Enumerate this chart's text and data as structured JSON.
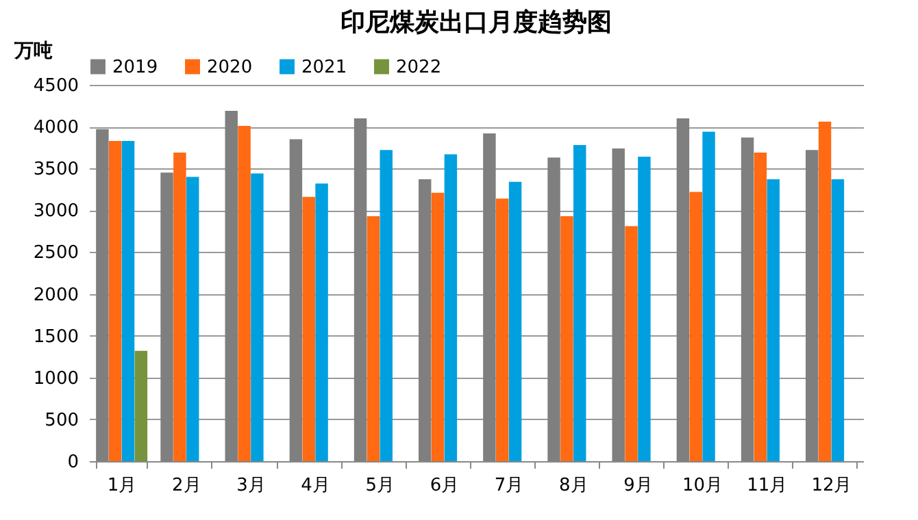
{
  "chart_data": {
    "type": "bar",
    "title": "印尼煤炭出口月度趋势图",
    "ylabel": "万吨",
    "categories": [
      "1月",
      "2月",
      "3月",
      "4月",
      "5月",
      "6月",
      "7月",
      "8月",
      "9月",
      "10月",
      "11月",
      "12月"
    ],
    "series": [
      {
        "name": "2019",
        "color": "#7f7f7f",
        "values": [
          3970,
          3450,
          4190,
          3850,
          4100,
          3370,
          3920,
          3630,
          3740,
          4100,
          3870,
          3720
        ]
      },
      {
        "name": "2020",
        "color": "#ff6a13",
        "values": [
          3830,
          3690,
          4010,
          3160,
          2930,
          3210,
          3140,
          2930,
          2810,
          3220,
          3690,
          4060
        ]
      },
      {
        "name": "2021",
        "color": "#00a0e0",
        "values": [
          3830,
          3400,
          3440,
          3320,
          3720,
          3670,
          3340,
          3780,
          3640,
          3940,
          3370,
          3370
        ]
      },
      {
        "name": "2022",
        "color": "#77933c",
        "values": [
          1320,
          null,
          null,
          null,
          null,
          null,
          null,
          null,
          null,
          null,
          null,
          null
        ]
      }
    ],
    "ylim": [
      0,
      4500
    ],
    "yticks": [
      0,
      500,
      1000,
      1500,
      2000,
      2500,
      3000,
      3500,
      4000,
      4500
    ],
    "grid": "y",
    "legend": "top"
  }
}
